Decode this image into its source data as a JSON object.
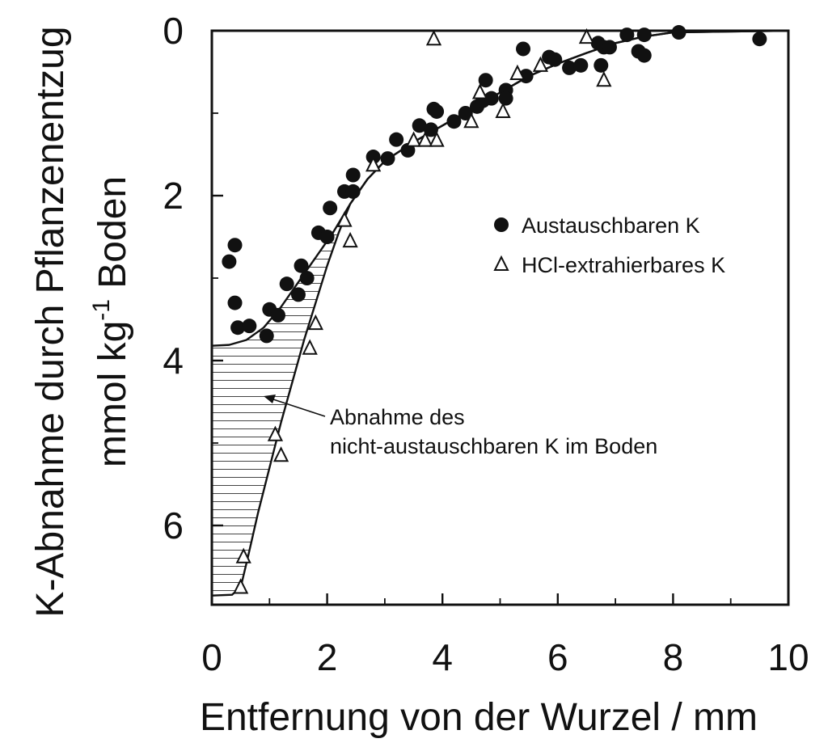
{
  "chart_data": {
    "type": "scatter",
    "xlabel": "Entfernung von der Wurzel  /  mm",
    "ylabel": "K-Abnahme durch Pflanzenentzug",
    "ylabel_unit_pre": "mmol kg",
    "ylabel_unit_sup": "-1",
    "ylabel_unit_post": " Boden",
    "xlim": [
      0,
      10
    ],
    "ylim": [
      0,
      7
    ],
    "y_inverted": true,
    "x_ticks": [
      "0",
      "2",
      "4",
      "6",
      "8",
      "10"
    ],
    "x_tick_values": [
      0,
      2,
      4,
      6,
      8,
      10
    ],
    "y_ticks": [
      "0",
      "2",
      "4",
      "6"
    ],
    "y_tick_values": [
      0,
      2,
      4,
      6
    ],
    "grid": false,
    "legend_position": "right",
    "series": [
      {
        "name": "Austauschbaren K",
        "marker": "filled-circle",
        "color": "#111111",
        "points": [
          [
            0.3,
            2.8
          ],
          [
            0.4,
            2.6
          ],
          [
            0.4,
            3.3
          ],
          [
            0.45,
            3.6
          ],
          [
            0.65,
            3.58
          ],
          [
            0.95,
            3.7
          ],
          [
            1.0,
            3.38
          ],
          [
            1.15,
            3.45
          ],
          [
            1.3,
            3.07
          ],
          [
            1.5,
            3.2
          ],
          [
            1.55,
            2.85
          ],
          [
            1.65,
            3.0
          ],
          [
            1.85,
            2.45
          ],
          [
            2.0,
            2.5
          ],
          [
            2.05,
            2.15
          ],
          [
            2.3,
            1.95
          ],
          [
            2.45,
            1.75
          ],
          [
            2.45,
            1.95
          ],
          [
            2.8,
            1.53
          ],
          [
            3.05,
            1.55
          ],
          [
            3.2,
            1.32
          ],
          [
            3.4,
            1.45
          ],
          [
            3.6,
            1.15
          ],
          [
            3.8,
            1.2
          ],
          [
            3.85,
            0.95
          ],
          [
            3.9,
            0.98
          ],
          [
            4.2,
            1.1
          ],
          [
            4.4,
            1.0
          ],
          [
            4.6,
            0.92
          ],
          [
            4.7,
            0.85
          ],
          [
            4.75,
            0.6
          ],
          [
            4.85,
            0.82
          ],
          [
            5.1,
            0.72
          ],
          [
            5.1,
            0.82
          ],
          [
            5.4,
            0.22
          ],
          [
            5.45,
            0.55
          ],
          [
            5.85,
            0.32
          ],
          [
            5.95,
            0.35
          ],
          [
            6.2,
            0.45
          ],
          [
            6.4,
            0.42
          ],
          [
            6.7,
            0.15
          ],
          [
            6.75,
            0.42
          ],
          [
            6.8,
            0.2
          ],
          [
            6.9,
            0.2
          ],
          [
            7.2,
            0.05
          ],
          [
            7.4,
            0.25
          ],
          [
            7.5,
            0.05
          ],
          [
            7.5,
            0.3
          ],
          [
            8.1,
            0.02
          ],
          [
            9.5,
            0.1
          ]
        ]
      },
      {
        "name": "HCl-extrahierbares K",
        "marker": "open-triangle",
        "color": "#111111",
        "points": [
          [
            0.5,
            6.75
          ],
          [
            0.55,
            6.38
          ],
          [
            1.1,
            4.9
          ],
          [
            1.2,
            5.15
          ],
          [
            1.7,
            3.85
          ],
          [
            1.8,
            3.55
          ],
          [
            2.3,
            2.3
          ],
          [
            2.4,
            2.55
          ],
          [
            2.8,
            1.63
          ],
          [
            3.5,
            1.33
          ],
          [
            3.7,
            1.33
          ],
          [
            3.9,
            1.33
          ],
          [
            3.85,
            0.1
          ],
          [
            4.5,
            1.1
          ],
          [
            4.65,
            0.75
          ],
          [
            5.05,
            0.98
          ],
          [
            5.3,
            0.52
          ],
          [
            5.7,
            0.42
          ],
          [
            6.5,
            0.08
          ],
          [
            6.8,
            0.6
          ]
        ]
      }
    ],
    "fit_curves": [
      {
        "series": "Austauschbaren K",
        "points": [
          [
            0,
            3.82
          ],
          [
            0.3,
            3.81
          ],
          [
            0.6,
            3.75
          ],
          [
            0.9,
            3.6
          ],
          [
            1.2,
            3.35
          ],
          [
            1.5,
            3.05
          ],
          [
            1.8,
            2.75
          ],
          [
            2.1,
            2.45
          ],
          [
            2.4,
            2.1
          ],
          [
            2.7,
            1.8
          ],
          [
            3.0,
            1.58
          ],
          [
            3.5,
            1.35
          ],
          [
            4.0,
            1.15
          ],
          [
            4.5,
            0.95
          ],
          [
            5.0,
            0.75
          ],
          [
            5.5,
            0.55
          ],
          [
            6.0,
            0.4
          ],
          [
            6.5,
            0.27
          ],
          [
            7.0,
            0.15
          ],
          [
            7.5,
            0.07
          ],
          [
            8.0,
            0.02
          ],
          [
            10.0,
            0.0
          ]
        ]
      },
      {
        "series": "HCl-extrahierbares K",
        "points": [
          [
            0,
            6.85
          ],
          [
            0.35,
            6.84
          ],
          [
            0.5,
            6.75
          ],
          [
            0.62,
            6.4
          ],
          [
            0.8,
            5.85
          ],
          [
            1.0,
            5.3
          ],
          [
            1.2,
            4.75
          ],
          [
            1.4,
            4.25
          ],
          [
            1.6,
            3.75
          ],
          [
            1.8,
            3.3
          ],
          [
            2.0,
            2.85
          ],
          [
            2.2,
            2.45
          ],
          [
            2.4,
            2.1
          ],
          [
            2.7,
            1.8
          ],
          [
            3.0,
            1.58
          ],
          [
            3.5,
            1.35
          ],
          [
            4.0,
            1.15
          ],
          [
            4.5,
            0.95
          ],
          [
            5.0,
            0.75
          ],
          [
            5.5,
            0.55
          ],
          [
            6.0,
            0.4
          ],
          [
            6.5,
            0.27
          ],
          [
            7.0,
            0.15
          ],
          [
            7.5,
            0.07
          ],
          [
            8.0,
            0.02
          ],
          [
            10.0,
            0.0
          ]
        ]
      }
    ],
    "annotation": {
      "lines": [
        "Abnahme des",
        "nicht-austauschbaren K im Boden"
      ],
      "arrow_target": [
        0.9,
        4.45
      ]
    }
  }
}
